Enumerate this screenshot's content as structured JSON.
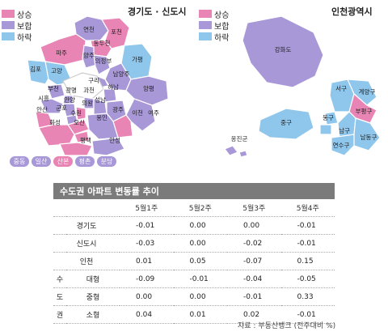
{
  "gyeonggi": {
    "title": "경기도 · 신도시",
    "legend": [
      {
        "label": "상승",
        "color": "#e985b4"
      },
      {
        "label": "보합",
        "color": "#a898d8"
      },
      {
        "label": "하락",
        "color": "#8fc6ec"
      }
    ],
    "regions": [
      "연천",
      "포천",
      "동두천",
      "파주",
      "양주",
      "의정부",
      "가평",
      "김포",
      "고양",
      "남양주",
      "구리",
      "부천",
      "광명",
      "과천",
      "하남",
      "양평",
      "시흥",
      "안양",
      "성남",
      "광주",
      "여주",
      "안산",
      "군포",
      "의왕",
      "수원",
      "이천",
      "용인",
      "화성",
      "오산",
      "평택",
      "안성"
    ],
    "new_towns": [
      {
        "label": "중동",
        "color": "#a898d8"
      },
      {
        "label": "일산",
        "color": "#a898d8"
      },
      {
        "label": "산본",
        "color": "#e985b4"
      },
      {
        "label": "평촌",
        "color": "#a898d8"
      },
      {
        "label": "분당",
        "color": "#a898d8"
      }
    ]
  },
  "incheon": {
    "title": "인천광역시",
    "legend": [
      {
        "label": "상승",
        "color": "#e985b4"
      },
      {
        "label": "보합",
        "color": "#a898d8"
      },
      {
        "label": "하락",
        "color": "#8fc6ec"
      }
    ],
    "regions": [
      "강화도",
      "서구",
      "계양구",
      "부평구",
      "중구",
      "동구",
      "남구",
      "남동구",
      "연수구",
      "옹진군"
    ]
  },
  "table": {
    "title": "수도권 아파트 변동률 추이",
    "columns": [
      "5월1주",
      "5월2주",
      "5월3주",
      "5월4주"
    ],
    "group_label": [
      "수",
      "도",
      "권"
    ],
    "rows": [
      {
        "label": "경기도",
        "values": [
          "-0.01",
          "0.00",
          "0.00",
          "-0.01"
        ]
      },
      {
        "label": "신도시",
        "values": [
          "-0.03",
          "0.00",
          "-0.02",
          "-0.01"
        ]
      },
      {
        "label": "인천",
        "values": [
          "0.01",
          "0.05",
          "-0.07",
          "0.15"
        ]
      },
      {
        "label": "대형",
        "values": [
          "-0.09",
          "-0.01",
          "-0.04",
          "-0.05"
        ]
      },
      {
        "label": "중형",
        "values": [
          "0.00",
          "0.00",
          "-0.01",
          "0.33"
        ]
      },
      {
        "label": "소형",
        "values": [
          "0.04",
          "0.01",
          "0.02",
          "-0.01"
        ]
      }
    ]
  },
  "source": "자료 : 부동산뱅크 (전주대비 %)"
}
